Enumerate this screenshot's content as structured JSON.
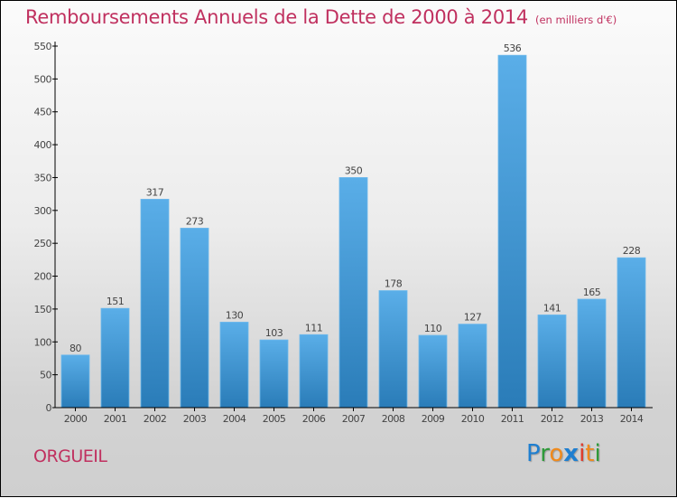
{
  "header": {
    "title": "Remboursements Annuels de la Dette de 2000 à 2014",
    "unit": "(en milliers d'€)"
  },
  "footer": {
    "commune": "ORGUEIL",
    "logo": {
      "letters": [
        {
          "ch": "P",
          "color": "#1f7fd0"
        },
        {
          "ch": "r",
          "color": "#2e9a3a"
        },
        {
          "ch": "o",
          "color": "#f08a1c"
        },
        {
          "ch": "x",
          "color": "#1f7fd0"
        },
        {
          "ch": "i",
          "color": "#e03a2a"
        },
        {
          "ch": "t",
          "color": "#f08a1c"
        },
        {
          "ch": "i",
          "color": "#2e9a3a"
        }
      ]
    }
  },
  "colors": {
    "title": "#c0305f",
    "bar_top": "#5aaee8",
    "bar_bottom": "#2a7cb8",
    "axis": "#000000",
    "label": "#444444"
  },
  "chart_data": {
    "type": "bar",
    "title": "Remboursements Annuels de la Dette de 2000 à 2014",
    "subtitle": "(en milliers d'€)",
    "xlabel": "",
    "ylabel": "",
    "categories": [
      "2000",
      "2001",
      "2002",
      "2003",
      "2004",
      "2005",
      "2006",
      "2007",
      "2008",
      "2009",
      "2010",
      "2011",
      "2012",
      "2013",
      "2014"
    ],
    "values": [
      80,
      151,
      317,
      273,
      130,
      103,
      111,
      350,
      178,
      110,
      127,
      536,
      141,
      165,
      228
    ],
    "ylim": [
      0,
      550
    ],
    "yticks": [
      0,
      50,
      100,
      150,
      200,
      250,
      300,
      350,
      400,
      450,
      500,
      550
    ],
    "grid": false,
    "legend": "none",
    "data_labels": true
  }
}
